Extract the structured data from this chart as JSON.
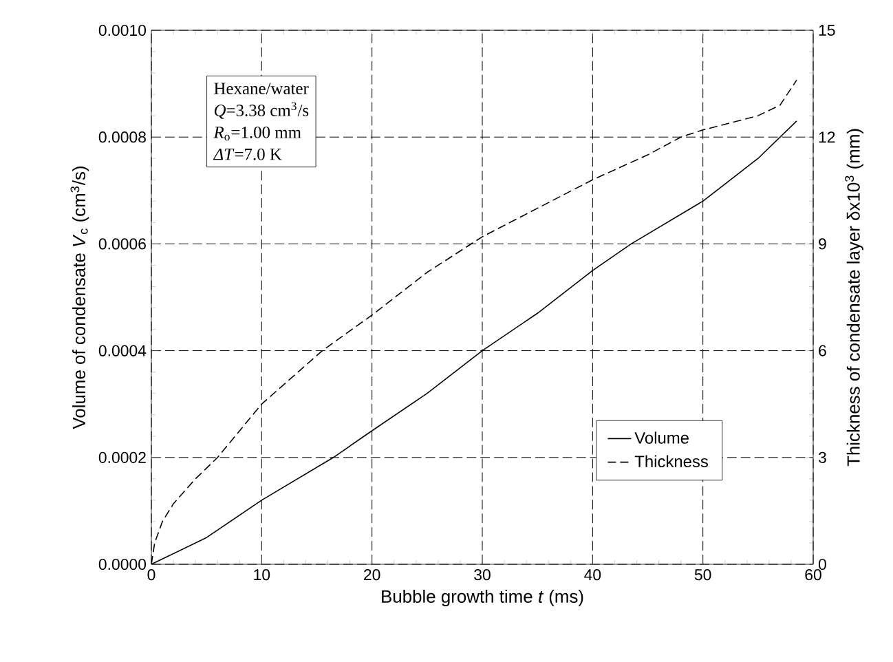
{
  "chart_data": {
    "type": "line",
    "xlabel": "Bubble growth time *t* (ms)",
    "ylabel": "Volume of condensate *V*$_{c}$ (cm$^{3}$/s)",
    "y2label": "Thickness of condensate layer δx10$^{3}$ (mm)",
    "xlim": [
      0,
      60
    ],
    "xticks": [
      0,
      10,
      20,
      30,
      40,
      50,
      60
    ],
    "ylim": [
      0,
      0.001
    ],
    "yticks": [
      {
        "value": 0,
        "label": "0.0000"
      },
      {
        "value": 0.0002,
        "label": "0.0002"
      },
      {
        "value": 0.0004,
        "label": "0.0004"
      },
      {
        "value": 0.0006,
        "label": "0.0006"
      },
      {
        "value": 0.0008,
        "label": "0.0008"
      },
      {
        "value": 0.001,
        "label": "0.0010"
      }
    ],
    "y2lim": [
      0,
      15
    ],
    "y2ticks": [
      0,
      3,
      6,
      9,
      12,
      15
    ],
    "grid": true,
    "legend": "bottom right",
    "annotations": [
      "Hexane/water",
      "*Q*=3.38 cm$^{3}$/s",
      "*R*$_{o}$=1.00 mm",
      "*ΔT*=7.0 K"
    ],
    "series": [
      {
        "name": "Volume",
        "color": "#000000",
        "line_style": "solid",
        "x": [
          0,
          5,
          10,
          16.5,
          20,
          25,
          30,
          35,
          40,
          43.5,
          50,
          55,
          58.5
        ],
        "values": [
          0,
          5e-05,
          0.00012,
          0.0002,
          0.00025,
          0.00032,
          0.0004,
          0.00047,
          0.00055,
          0.0006,
          0.00068,
          0.00076,
          0.00083
        ]
      },
      {
        "name": "Thickness",
        "color": "#000000",
        "line_style": "dashed",
        "axis": "y2",
        "x": [
          0,
          0.3,
          1,
          2,
          4,
          6,
          10,
          15.5,
          20,
          25,
          30,
          35,
          40,
          45,
          48,
          50,
          55,
          57,
          58.5
        ],
        "values": [
          0,
          0.6,
          1.2,
          1.7,
          2.4,
          3,
          4.5,
          6,
          7,
          8.2,
          9.2,
          10,
          10.8,
          11.5,
          12,
          12.2,
          12.6,
          12.9,
          13.6
        ]
      }
    ]
  }
}
